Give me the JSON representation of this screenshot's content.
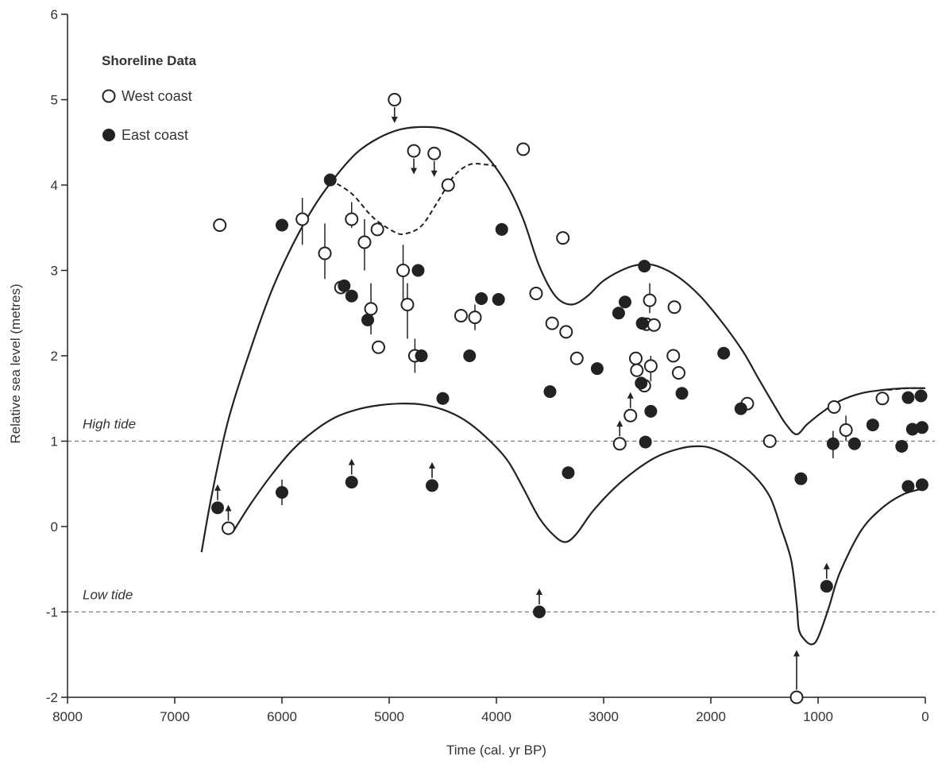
{
  "chart_data": {
    "type": "scatter",
    "xlabel": "Time (cal. yr BP)",
    "ylabel": "Relative sea level (metres)",
    "xlim": [
      8000,
      0
    ],
    "ylim": [
      -2,
      6
    ],
    "x_reversed": true,
    "x_ticks": [
      8000,
      7000,
      6000,
      5000,
      4000,
      3000,
      2000,
      1000,
      0
    ],
    "y_ticks": [
      -2,
      -1,
      0,
      1,
      2,
      3,
      4,
      5,
      6
    ],
    "legend": {
      "title": "Shoreline Data",
      "placement": "top-left",
      "entries": [
        {
          "label": "West coast",
          "marker": "open-circle"
        },
        {
          "label": "East coast",
          "marker": "filled-circle"
        }
      ]
    },
    "reference_lines": [
      {
        "label": "High tide",
        "y": 1
      },
      {
        "label": "Low tide",
        "y": -1
      }
    ],
    "series": [
      {
        "key": "west",
        "marker": "open-circle",
        "points": [
          {
            "x": 6580,
            "y": 3.53
          },
          {
            "x": 6500,
            "y": -0.02,
            "arrow": "up"
          },
          {
            "x": 5810,
            "y": 3.6,
            "err": [
              3.3,
              3.85
            ]
          },
          {
            "x": 5600,
            "y": 3.2,
            "err": [
              2.9,
              3.55
            ]
          },
          {
            "x": 5450,
            "y": 2.8
          },
          {
            "x": 5350,
            "y": 3.6,
            "err": [
              3.5,
              3.8
            ]
          },
          {
            "x": 5230,
            "y": 3.33,
            "err": [
              3.0,
              3.6
            ]
          },
          {
            "x": 5170,
            "y": 2.55,
            "err": [
              2.25,
              2.85
            ]
          },
          {
            "x": 5110,
            "y": 3.48
          },
          {
            "x": 5100,
            "y": 2.1
          },
          {
            "x": 4950,
            "y": 5.0,
            "arrow": "down"
          },
          {
            "x": 4870,
            "y": 3.0,
            "err": [
              2.6,
              3.3
            ]
          },
          {
            "x": 4830,
            "y": 2.6,
            "err": [
              2.2,
              2.85
            ]
          },
          {
            "x": 4770,
            "y": 4.4,
            "arrow": "down"
          },
          {
            "x": 4760,
            "y": 2.0,
            "err": [
              1.8,
              2.2
            ]
          },
          {
            "x": 4580,
            "y": 4.37,
            "arrow": "down"
          },
          {
            "x": 4450,
            "y": 4.0
          },
          {
            "x": 4330,
            "y": 2.47
          },
          {
            "x": 4200,
            "y": 2.45,
            "err": [
              2.3,
              2.6
            ]
          },
          {
            "x": 3750,
            "y": 4.42
          },
          {
            "x": 3630,
            "y": 2.73
          },
          {
            "x": 3480,
            "y": 2.38
          },
          {
            "x": 3380,
            "y": 3.38
          },
          {
            "x": 3350,
            "y": 2.28
          },
          {
            "x": 3250,
            "y": 1.97
          },
          {
            "x": 2850,
            "y": 0.97,
            "arrow": "up"
          },
          {
            "x": 2750,
            "y": 1.3,
            "arrow": "up"
          },
          {
            "x": 2700,
            "y": 1.97
          },
          {
            "x": 2690,
            "y": 1.83
          },
          {
            "x": 2620,
            "y": 1.65
          },
          {
            "x": 2600,
            "y": 2.37
          },
          {
            "x": 2570,
            "y": 2.65,
            "err": [
              2.5,
              2.85
            ]
          },
          {
            "x": 2560,
            "y": 1.88,
            "err": [
              1.7,
              2.0
            ]
          },
          {
            "x": 2530,
            "y": 2.36
          },
          {
            "x": 2350,
            "y": 2.0
          },
          {
            "x": 2340,
            "y": 2.57
          },
          {
            "x": 2300,
            "y": 1.8
          },
          {
            "x": 1660,
            "y": 1.44
          },
          {
            "x": 1450,
            "y": 1.0
          },
          {
            "x": 1200,
            "y": -2.0,
            "arrow": "up-long"
          },
          {
            "x": 850,
            "y": 1.4
          },
          {
            "x": 740,
            "y": 1.13,
            "err": [
              1.0,
              1.3
            ]
          },
          {
            "x": 400,
            "y": 1.5
          }
        ]
      },
      {
        "key": "east",
        "marker": "filled-circle",
        "points": [
          {
            "x": 6600,
            "y": 0.22,
            "arrow": "up"
          },
          {
            "x": 6000,
            "y": 3.53
          },
          {
            "x": 6000,
            "y": 0.4,
            "err": [
              0.25,
              0.55
            ]
          },
          {
            "x": 5550,
            "y": 4.06
          },
          {
            "x": 5420,
            "y": 2.82
          },
          {
            "x": 5350,
            "y": 2.7
          },
          {
            "x": 5350,
            "y": 0.52,
            "arrow": "up"
          },
          {
            "x": 5200,
            "y": 2.42
          },
          {
            "x": 4730,
            "y": 3.0
          },
          {
            "x": 4700,
            "y": 2.0
          },
          {
            "x": 4600,
            "y": 0.48,
            "arrow": "up"
          },
          {
            "x": 4500,
            "y": 1.5
          },
          {
            "x": 4250,
            "y": 2.0
          },
          {
            "x": 4140,
            "y": 2.67
          },
          {
            "x": 3980,
            "y": 2.66
          },
          {
            "x": 3950,
            "y": 3.48
          },
          {
            "x": 3600,
            "y": -1.0,
            "arrow": "up"
          },
          {
            "x": 3500,
            "y": 1.58
          },
          {
            "x": 3330,
            "y": 0.63
          },
          {
            "x": 3060,
            "y": 1.85
          },
          {
            "x": 2860,
            "y": 2.5
          },
          {
            "x": 2800,
            "y": 2.63
          },
          {
            "x": 2650,
            "y": 1.68
          },
          {
            "x": 2640,
            "y": 2.38
          },
          {
            "x": 2620,
            "y": 3.05
          },
          {
            "x": 2610,
            "y": 0.99
          },
          {
            "x": 2560,
            "y": 1.35
          },
          {
            "x": 2270,
            "y": 1.56
          },
          {
            "x": 1880,
            "y": 2.03
          },
          {
            "x": 1720,
            "y": 1.38
          },
          {
            "x": 1160,
            "y": 0.56
          },
          {
            "x": 920,
            "y": -0.7,
            "arrow": "up"
          },
          {
            "x": 860,
            "y": 0.97,
            "err": [
              0.8,
              1.12
            ]
          },
          {
            "x": 660,
            "y": 0.97
          },
          {
            "x": 490,
            "y": 1.19
          },
          {
            "x": 220,
            "y": 0.94
          },
          {
            "x": 160,
            "y": 1.51
          },
          {
            "x": 160,
            "y": 0.47
          },
          {
            "x": 120,
            "y": 1.14
          },
          {
            "x": 40,
            "y": 1.53
          },
          {
            "x": 30,
            "y": 1.16
          },
          {
            "x": 30,
            "y": 0.49
          }
        ]
      }
    ],
    "envelope_curves": [
      {
        "key": "upper",
        "style": "solid",
        "points": [
          [
            6750,
            -0.3
          ],
          [
            6650,
            0.4
          ],
          [
            6500,
            1.25
          ],
          [
            6300,
            2.05
          ],
          [
            6100,
            2.75
          ],
          [
            5900,
            3.3
          ],
          [
            5700,
            3.75
          ],
          [
            5500,
            4.1
          ],
          [
            5300,
            4.38
          ],
          [
            5100,
            4.55
          ],
          [
            4900,
            4.65
          ],
          [
            4700,
            4.68
          ],
          [
            4500,
            4.66
          ],
          [
            4300,
            4.55
          ],
          [
            4100,
            4.35
          ],
          [
            3900,
            4.0
          ],
          [
            3750,
            3.6
          ],
          [
            3600,
            3.05
          ],
          [
            3450,
            2.7
          ],
          [
            3300,
            2.6
          ],
          [
            3150,
            2.7
          ],
          [
            3000,
            2.88
          ],
          [
            2800,
            3.02
          ],
          [
            2650,
            3.07
          ],
          [
            2500,
            3.05
          ],
          [
            2300,
            2.92
          ],
          [
            2100,
            2.7
          ],
          [
            1900,
            2.4
          ],
          [
            1700,
            2.05
          ],
          [
            1550,
            1.72
          ],
          [
            1400,
            1.4
          ],
          [
            1300,
            1.2
          ],
          [
            1200,
            1.08
          ],
          [
            1100,
            1.2
          ],
          [
            950,
            1.35
          ],
          [
            800,
            1.47
          ],
          [
            600,
            1.56
          ],
          [
            400,
            1.6
          ],
          [
            200,
            1.62
          ],
          [
            0,
            1.62
          ]
        ]
      },
      {
        "key": "lower",
        "style": "solid",
        "points": [
          [
            6450,
            -0.05
          ],
          [
            6300,
            0.25
          ],
          [
            6100,
            0.6
          ],
          [
            5900,
            0.9
          ],
          [
            5700,
            1.12
          ],
          [
            5500,
            1.28
          ],
          [
            5300,
            1.37
          ],
          [
            5100,
            1.42
          ],
          [
            4900,
            1.44
          ],
          [
            4700,
            1.43
          ],
          [
            4500,
            1.37
          ],
          [
            4300,
            1.25
          ],
          [
            4100,
            1.05
          ],
          [
            3900,
            0.78
          ],
          [
            3750,
            0.45
          ],
          [
            3600,
            0.1
          ],
          [
            3450,
            -0.12
          ],
          [
            3350,
            -0.18
          ],
          [
            3250,
            -0.08
          ],
          [
            3100,
            0.18
          ],
          [
            2900,
            0.45
          ],
          [
            2700,
            0.66
          ],
          [
            2500,
            0.82
          ],
          [
            2300,
            0.91
          ],
          [
            2150,
            0.94
          ],
          [
            2000,
            0.92
          ],
          [
            1800,
            0.8
          ],
          [
            1600,
            0.6
          ],
          [
            1450,
            0.35
          ],
          [
            1350,
            0.0
          ],
          [
            1250,
            -0.4
          ],
          [
            1200,
            -0.9
          ],
          [
            1180,
            -1.2
          ],
          [
            1130,
            -1.32
          ],
          [
            1060,
            -1.38
          ],
          [
            1000,
            -1.3
          ],
          [
            900,
            -0.95
          ],
          [
            800,
            -0.55
          ],
          [
            600,
            -0.05
          ],
          [
            400,
            0.22
          ],
          [
            200,
            0.38
          ],
          [
            0,
            0.45
          ]
        ]
      },
      {
        "key": "alternative",
        "style": "dashed",
        "points": [
          [
            5550,
            4.06
          ],
          [
            5350,
            3.9
          ],
          [
            5150,
            3.62
          ],
          [
            4950,
            3.45
          ],
          [
            4850,
            3.43
          ],
          [
            4700,
            3.52
          ],
          [
            4550,
            3.8
          ],
          [
            4400,
            4.1
          ],
          [
            4250,
            4.24
          ],
          [
            4100,
            4.24
          ],
          [
            4000,
            4.22
          ]
        ]
      },
      {
        "key": "tail-dashed",
        "style": "dashed",
        "points": [
          [
            350,
            1.6
          ],
          [
            150,
            1.62
          ],
          [
            0,
            1.62
          ]
        ]
      }
    ]
  }
}
